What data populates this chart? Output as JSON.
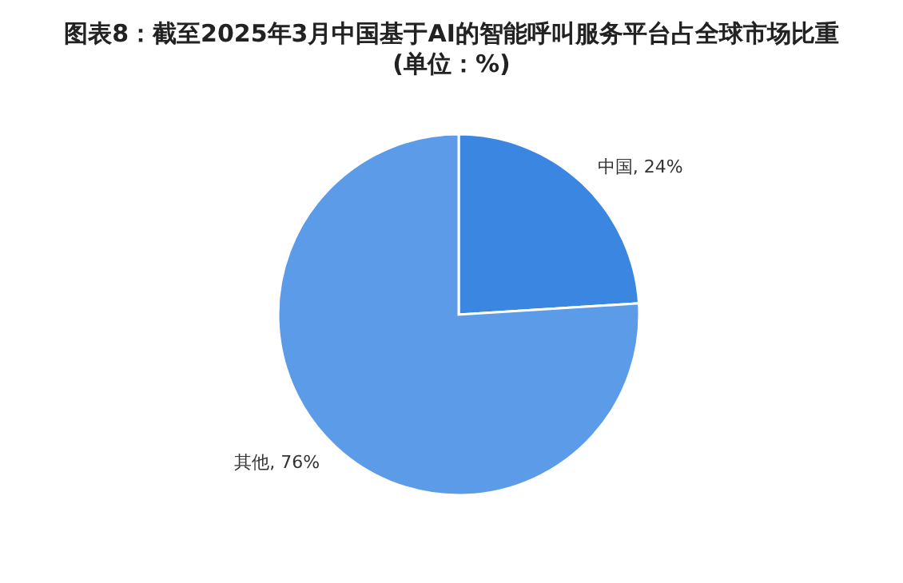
{
  "chart_data": {
    "type": "pie",
    "title": "图表8：截至2025年3月中国基于AI的智能呼叫服务平台占全球市场比重",
    "subtitle": "(单位：%)",
    "categories": [
      "中国",
      "其他"
    ],
    "values": [
      24,
      76
    ],
    "colors": [
      "#3a86e0",
      "#5b9be8"
    ],
    "value_labels": [
      "24%",
      "76%"
    ],
    "legend": false
  }
}
